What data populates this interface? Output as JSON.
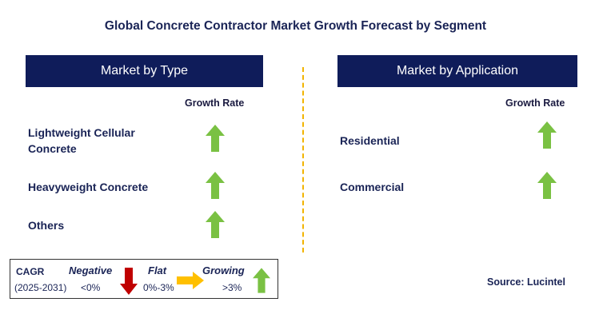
{
  "title": "Global Concrete Contractor Market Growth Forecast by Segment",
  "left_panel": {
    "header": "Market by Type",
    "growth_rate_label": "Growth Rate",
    "rows": [
      {
        "label": "Lightweight Cellular Concrete",
        "trend": "growing"
      },
      {
        "label": "Heavyweight Concrete",
        "trend": "growing"
      },
      {
        "label": "Others",
        "trend": "growing"
      }
    ]
  },
  "right_panel": {
    "header": "Market by Application",
    "growth_rate_label": "Growth Rate",
    "rows": [
      {
        "label": "Residential",
        "trend": "growing"
      },
      {
        "label": "Commercial",
        "trend": "growing"
      }
    ]
  },
  "legend": {
    "cagr_label": "CAGR",
    "period": "(2025-2031)",
    "negative_label": "Negative",
    "negative_range": "<0%",
    "flat_label": "Flat",
    "flat_range": "0%-3%",
    "growing_label": "Growing",
    "growing_range": ">3%"
  },
  "source": "Source: Lucintel",
  "colors": {
    "header_bg": "#0f1c5a",
    "growing_arrow": "#7ac143",
    "negative_arrow": "#c00000",
    "flat_arrow": "#ffc000",
    "divider": "#f2b400"
  },
  "icons": {
    "growing": "up-arrow-icon",
    "negative": "down-arrow-icon",
    "flat": "right-arrow-icon"
  }
}
